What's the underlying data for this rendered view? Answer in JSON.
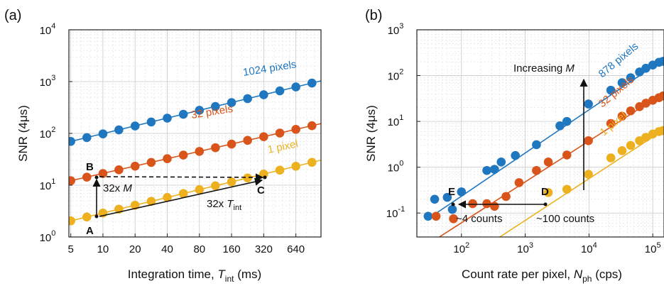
{
  "chart_data": [
    {
      "type": "scatter",
      "panel_label": "(a)",
      "xlabel": "Integration time, T_int (ms)",
      "xlabel_main": "Integration time, ",
      "xlabel_var": "T",
      "xlabel_sub": "int",
      "xlabel_unit": " (ms)",
      "ylabel": "SNR (4μs)",
      "xscale": "log2",
      "yscale": "log10",
      "xlim": [
        5,
        1024
      ],
      "ylim": [
        1,
        10000
      ],
      "grid": true,
      "xticks": [
        5,
        10,
        20,
        40,
        80,
        160,
        320,
        640
      ],
      "xtick_labels": [
        "5",
        "10",
        "20",
        "40",
        "80",
        "160",
        "320",
        "640"
      ],
      "yticks": [
        1,
        10,
        100,
        1000,
        10000
      ],
      "ytick_labels": [
        [
          "10",
          "0"
        ],
        [
          "10",
          "1"
        ],
        [
          "10",
          "2"
        ],
        [
          "10",
          "3"
        ],
        [
          "10",
          "4"
        ]
      ],
      "series": [
        {
          "name": "1024 pixels",
          "color": "#1f77c0",
          "x": [
            5,
            7.07,
            10,
            14.1,
            20,
            28.3,
            40,
            56.6,
            80,
            113,
            160,
            226,
            320,
            453,
            640,
            905
          ],
          "y": [
            70,
            83,
            98,
            117,
            139,
            166,
            197,
            234,
            279,
            331,
            394,
            469,
            557,
            663,
            788,
            937
          ]
        },
        {
          "name": "32 pixels",
          "color": "#d9541a",
          "x": [
            5,
            7.07,
            10,
            14.1,
            20,
            28.3,
            40,
            56.6,
            80,
            113,
            160,
            226,
            320,
            453,
            640,
            905
          ],
          "y": [
            12.2,
            14.3,
            16.8,
            19.8,
            23.3,
            27.5,
            32.4,
            38.1,
            44.9,
            52.9,
            62.2,
            73.3,
            86.3,
            101.6,
            119.6,
            140.8
          ]
        },
        {
          "name": "1 pixel",
          "color": "#edb120",
          "x": [
            5,
            7.07,
            10,
            14.1,
            20,
            28.3,
            40,
            56.6,
            80,
            113,
            160,
            226,
            320,
            453,
            640,
            905
          ],
          "y": [
            2.05,
            2.43,
            2.9,
            3.45,
            4.1,
            4.88,
            5.8,
            6.9,
            8.2,
            9.76,
            11.6,
            13.8,
            16.4,
            19.5,
            23.2,
            27.6
          ]
        }
      ],
      "annotations": [
        {
          "text": "A",
          "x": 10,
          "y": 2.9
        },
        {
          "text": "B",
          "x": 10,
          "y": 16.8
        },
        {
          "text": "C",
          "x": 320,
          "y": 16.4
        },
        {
          "text": "32x M",
          "main": "32x ",
          "var": "M"
        },
        {
          "text": "32x T_int",
          "main": "32x ",
          "var": "T",
          "sub": "int"
        }
      ]
    },
    {
      "type": "scatter",
      "panel_label": "(b)",
      "xlabel": "Count rate per pixel, N_ph (cps)",
      "xlabel_main": "Count rate per pixel, ",
      "xlabel_var": "N",
      "xlabel_sub": "ph",
      "xlabel_unit": " (cps)",
      "ylabel": "SNR (4μs)",
      "xscale": "log10",
      "yscale": "log10",
      "xlim": [
        20,
        150000
      ],
      "ylim": [
        0.03,
        1000
      ],
      "grid": true,
      "xticks": [
        100,
        1000,
        10000,
        100000
      ],
      "xtick_labels": [
        [
          "10",
          "2"
        ],
        [
          "10",
          "3"
        ],
        [
          "10",
          "4"
        ],
        [
          "10",
          "5"
        ]
      ],
      "yticks": [
        0.1,
        1,
        10,
        100,
        1000
      ],
      "ytick_labels": [
        [
          "10",
          "-1"
        ],
        [
          "10",
          "0"
        ],
        [
          "10",
          "1"
        ],
        [
          "10",
          "2"
        ],
        [
          "10",
          "3"
        ]
      ],
      "series": [
        {
          "name": "878 pixels",
          "color": "#1f77c0",
          "x": [
            30,
            38,
            60,
            72,
            100,
            250,
            330,
            420,
            700,
            1500,
            3500,
            4500,
            9800,
            22000,
            33000,
            45000,
            62000,
            78000,
            100000,
            125000,
            145000
          ],
          "y": [
            0.085,
            0.2,
            0.22,
            0.12,
            0.29,
            0.85,
            0.9,
            1.3,
            1.8,
            3.1,
            8,
            10,
            24,
            48,
            70,
            90,
            120,
            145,
            170,
            195,
            205
          ]
        },
        {
          "name": "32 pixels",
          "color": "#d9541a",
          "x": [
            40,
            75,
            150,
            250,
            330,
            500,
            800,
            1500,
            2300,
            4500,
            9800,
            22000,
            33000,
            45000,
            62000,
            78000,
            100000,
            125000,
            145000
          ],
          "y": [
            0.085,
            0.075,
            0.16,
            0.16,
            0.14,
            0.23,
            0.46,
            0.85,
            1.3,
            1.85,
            3.8,
            9,
            13,
            17,
            21,
            25,
            29,
            33,
            36
          ]
        },
        {
          "name": "1 pixel",
          "color": "#edb120",
          "x": [
            2300,
            4500,
            9800,
            22000,
            33000,
            45000,
            62000,
            78000,
            100000,
            125000,
            145000
          ],
          "y": [
            0.28,
            0.33,
            0.7,
            1.6,
            2.3,
            3,
            3.8,
            4.5,
            5.3,
            6,
            6.3
          ]
        }
      ],
      "annotations": [
        {
          "text": "Increasing M",
          "main": "Increasing ",
          "var": "M"
        },
        {
          "text": "D",
          "x": 2300,
          "y": 0.19
        },
        {
          "text": "E",
          "x": 75,
          "y": 0.19
        },
        {
          "text": "~4 counts"
        },
        {
          "text": "~100 counts"
        }
      ]
    }
  ]
}
